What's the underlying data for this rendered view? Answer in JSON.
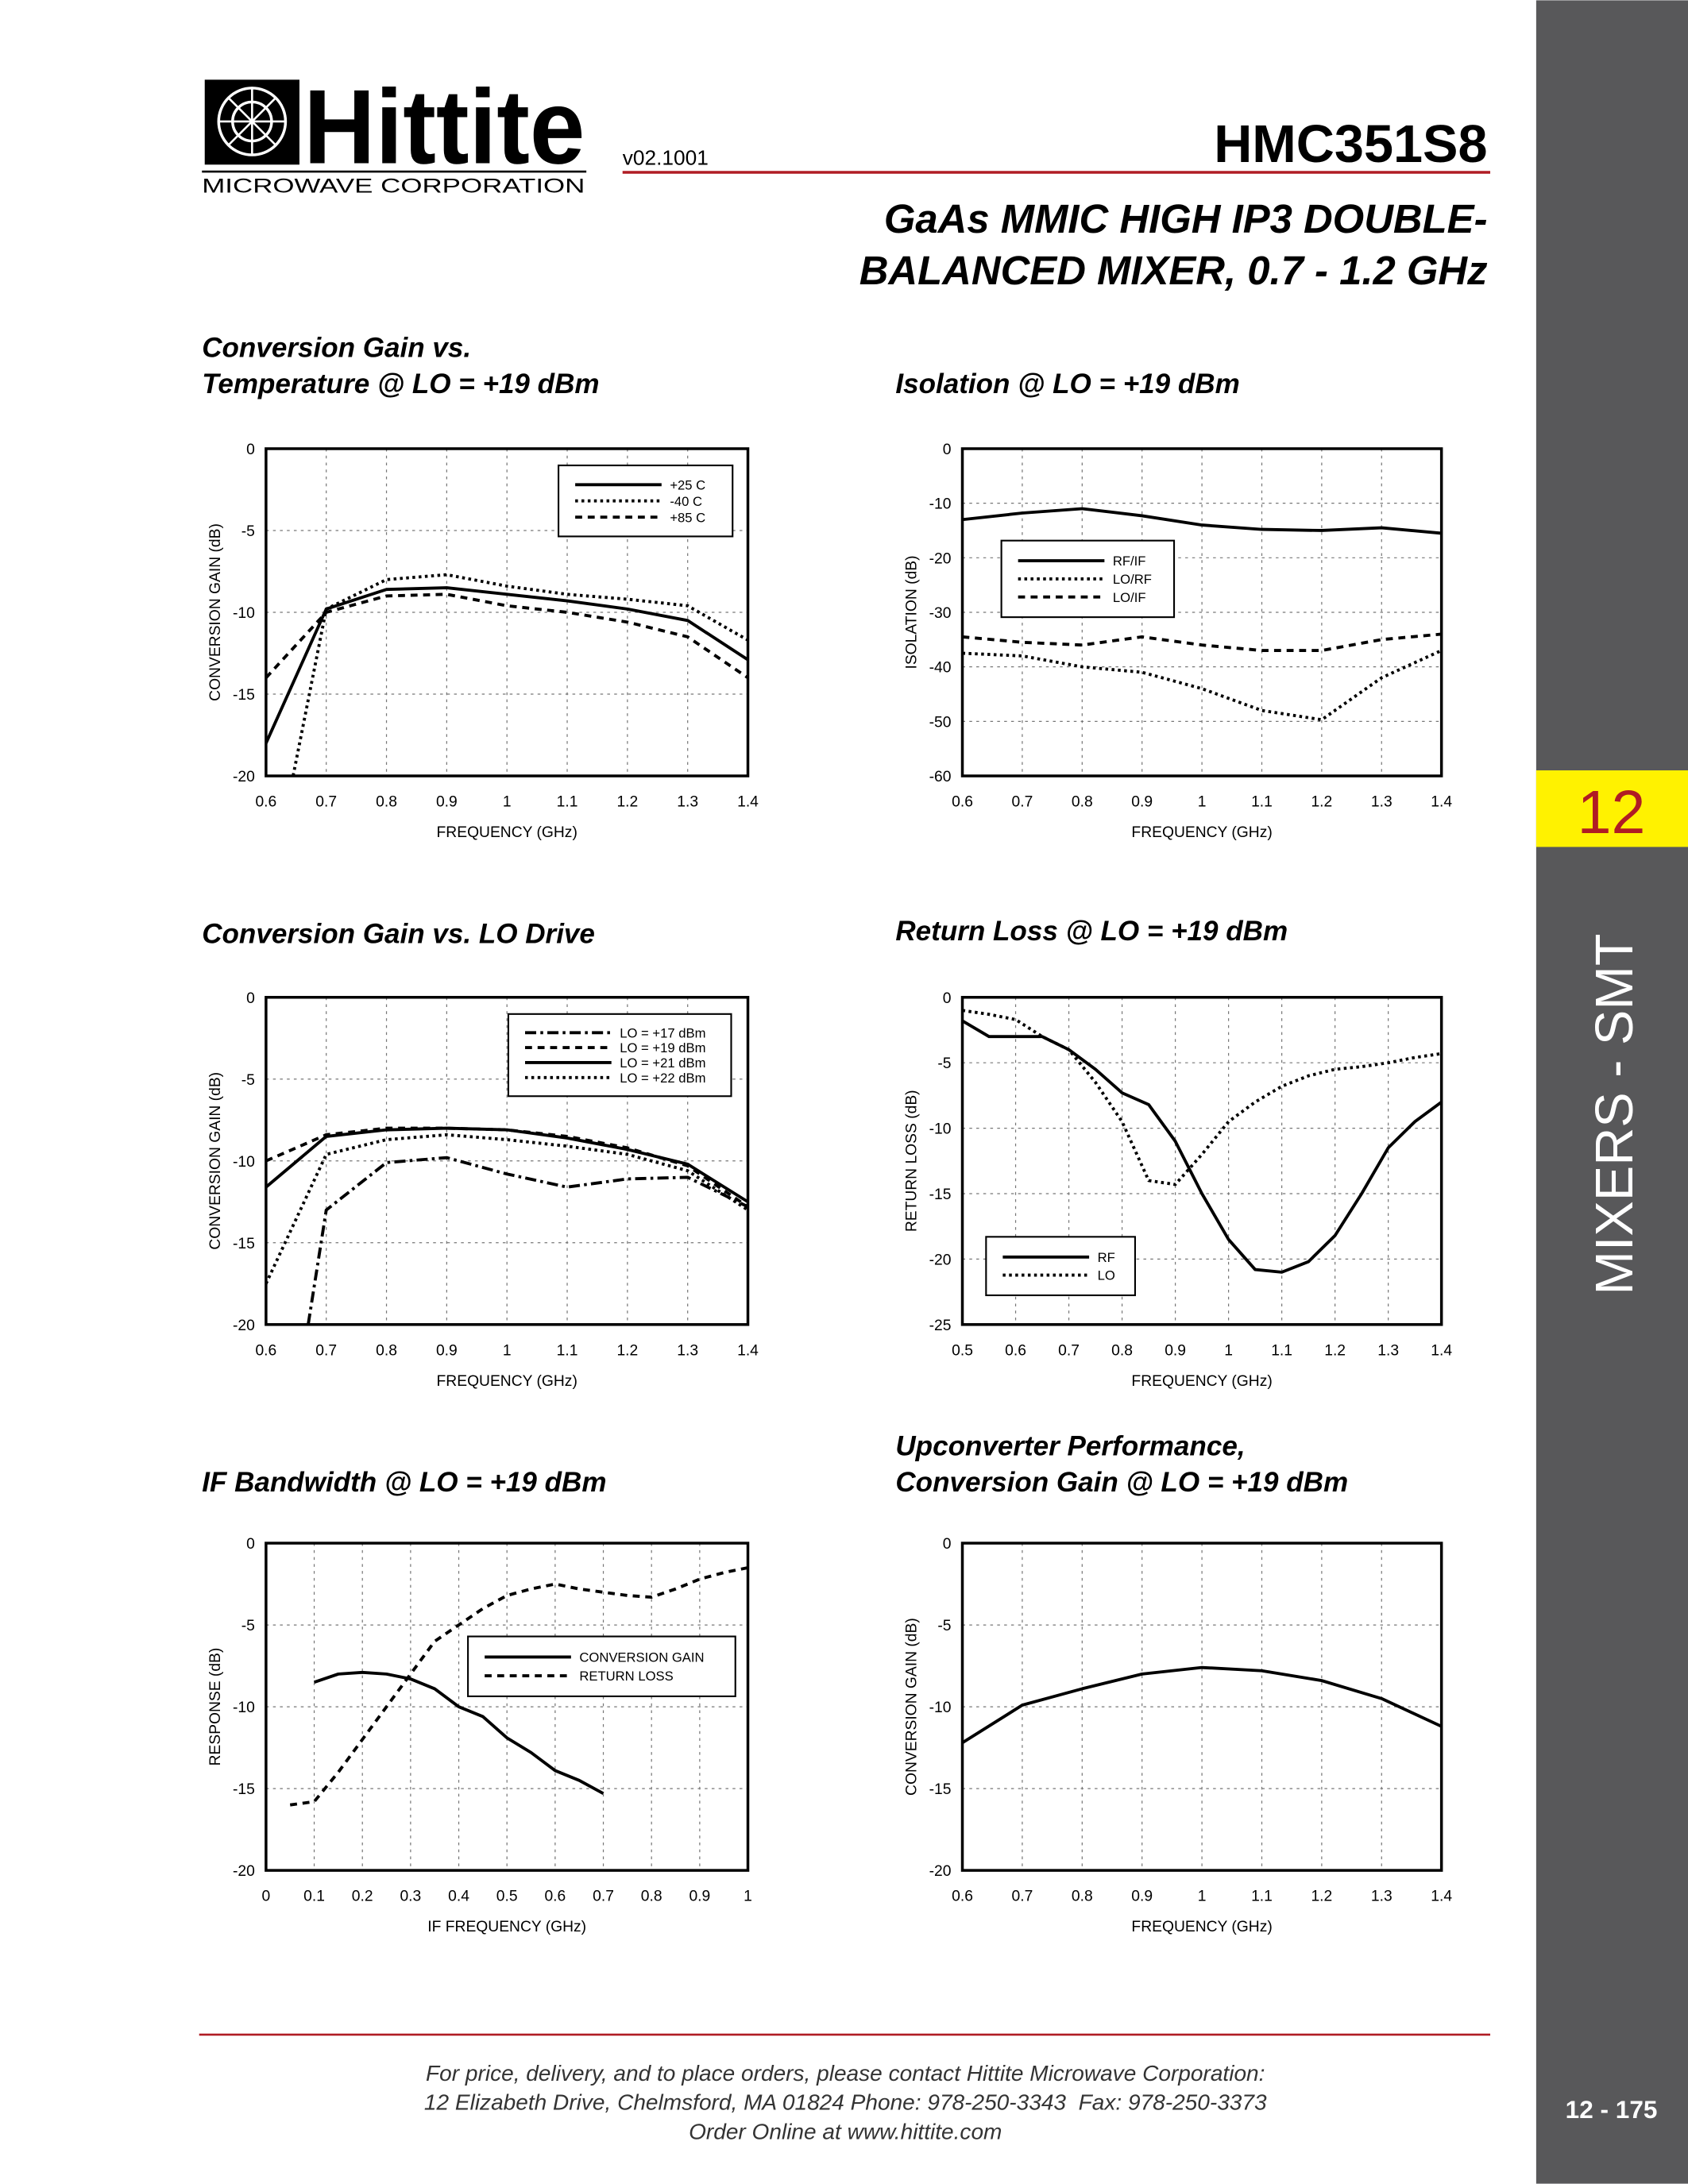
{
  "header": {
    "logo": "Hittite",
    "logo_sub": "MICROWAVE CORPORATION",
    "version": "v02.1001",
    "part": "HMC351S8",
    "title": [
      "GaAs MMIC HIGH IP3 DOUBLE-",
      "BALANCED MIXER, 0.7 - 1.2 GHz"
    ]
  },
  "sidebar": {
    "section": "12",
    "category": "MIXERS - SMT",
    "page": "12 - 175"
  },
  "footer": {
    "lines": [
      "For price, delivery, and to place orders, please contact Hittite Microwave Corporation:",
      "12 Elizabeth Drive, Chelmsford, MA 01824 Phone: 978-250-3343  Fax: 978-250-3373",
      "Order Online at www.hittite.com"
    ]
  },
  "chart_data": [
    {
      "type": "line",
      "title": [
        "Conversion Gain vs.",
        "Temperature @ LO = +19 dBm"
      ],
      "xlabel": "FREQUENCY (GHz)",
      "ylabel": "CONVERSION GAIN (dB)",
      "xlim": [
        0.6,
        1.4
      ],
      "xticks": [
        0.6,
        0.7,
        0.8,
        0.9,
        1,
        1.1,
        1.2,
        1.3,
        1.4
      ],
      "ylim": [
        -20,
        0
      ],
      "yticks": [
        0,
        -5,
        -10,
        -15,
        -20
      ],
      "grid": true,
      "legend": "upper right",
      "series": [
        {
          "name": "+25 C",
          "color": "#000000",
          "style": "solid",
          "x": [
            0.6,
            0.7,
            0.8,
            0.9,
            1,
            1.1,
            1.2,
            1.3,
            1.4
          ],
          "values": [
            -18,
            -9.8,
            -8.6,
            -8.5,
            -8.9,
            -9.3,
            -9.8,
            -10.5,
            -12.9
          ]
        },
        {
          "name": "-40 C",
          "color": "#000000",
          "style": "dotted",
          "x": [
            0.645,
            0.7,
            0.8,
            0.9,
            1,
            1.1,
            1.2,
            1.3,
            1.4
          ],
          "values": [
            -20,
            -9.8,
            -8.0,
            -7.7,
            -8.4,
            -8.9,
            -9.2,
            -9.6,
            -11.7
          ]
        },
        {
          "name": "+85 C",
          "color": "#000000",
          "style": "dashed",
          "x": [
            0.6,
            0.7,
            0.8,
            0.9,
            1,
            1.1,
            1.2,
            1.3,
            1.4
          ],
          "values": [
            -14,
            -10.0,
            -9.0,
            -8.9,
            -9.6,
            -10.0,
            -10.6,
            -11.5,
            -14.0
          ]
        }
      ]
    },
    {
      "type": "line",
      "title": [
        "Isolation @ LO = +19 dBm"
      ],
      "xlabel": "FREQUENCY (GHz)",
      "ylabel": "ISOLATION (dB)",
      "xlim": [
        0.6,
        1.4
      ],
      "xticks": [
        0.6,
        0.7,
        0.8,
        0.9,
        1,
        1.1,
        1.2,
        1.3,
        1.4
      ],
      "ylim": [
        -60,
        0
      ],
      "yticks": [
        0,
        -10,
        -20,
        -30,
        -40,
        -50,
        -60
      ],
      "grid": true,
      "legend": "center left",
      "series": [
        {
          "name": "RF/IF",
          "color": "#000000",
          "style": "solid",
          "x": [
            0.6,
            0.7,
            0.8,
            0.9,
            1,
            1.1,
            1.2,
            1.3,
            1.4
          ],
          "values": [
            -13,
            -11.8,
            -11,
            -12.3,
            -14,
            -14.8,
            -15,
            -14.5,
            -15.5
          ]
        },
        {
          "name": "LO/RF",
          "color": "#000000",
          "style": "dotted",
          "x": [
            0.6,
            0.7,
            0.8,
            0.9,
            1,
            1.1,
            1.2,
            1.3,
            1.4
          ],
          "values": [
            -37.5,
            -38,
            -40,
            -41,
            -44,
            -48,
            -49.7,
            -42,
            -37
          ]
        },
        {
          "name": "LO/IF",
          "color": "#000000",
          "style": "dashed",
          "x": [
            0.6,
            0.7,
            0.8,
            0.9,
            1,
            1.1,
            1.2,
            1.3,
            1.4
          ],
          "values": [
            -34.5,
            -35.5,
            -36,
            -34.5,
            -36,
            -37,
            -37,
            -35,
            -34
          ]
        }
      ]
    },
    {
      "type": "line",
      "title": [
        "Conversion Gain vs. LO Drive"
      ],
      "xlabel": "FREQUENCY (GHz)",
      "ylabel": "CONVERSION GAIN (dB)",
      "xlim": [
        0.6,
        1.4
      ],
      "xticks": [
        0.6,
        0.7,
        0.8,
        0.9,
        1,
        1.1,
        1.2,
        1.3,
        1.4
      ],
      "ylim": [
        -20,
        0
      ],
      "yticks": [
        0,
        -5,
        -10,
        -15,
        -20
      ],
      "grid": true,
      "legend": "upper right",
      "series": [
        {
          "name": "LO = +17 dBm",
          "color": "#000000",
          "style": "dashdot",
          "x": [
            0.67,
            0.7,
            0.8,
            0.9,
            1,
            1.1,
            1.2,
            1.3,
            1.4
          ],
          "values": [
            -20,
            -13,
            -10.1,
            -9.8,
            -10.8,
            -11.6,
            -11.1,
            -11.0,
            -12.8
          ]
        },
        {
          "name": "LO = +19 dBm",
          "color": "#000000",
          "style": "dashed",
          "x": [
            0.6,
            0.7,
            0.8,
            0.9,
            1,
            1.1,
            1.2,
            1.3,
            1.4
          ],
          "values": [
            -10.0,
            -8.4,
            -8.0,
            -8.0,
            -8.1,
            -8.5,
            -9.2,
            -10.3,
            -12.8
          ]
        },
        {
          "name": "LO = +21 dBm",
          "color": "#000000",
          "style": "solid",
          "x": [
            0.6,
            0.7,
            0.8,
            0.9,
            1,
            1.1,
            1.2,
            1.3,
            1.4
          ],
          "values": [
            -11.6,
            -8.5,
            -8.1,
            -8.0,
            -8.1,
            -8.6,
            -9.3,
            -10.2,
            -12.5
          ]
        },
        {
          "name": "LO = +22 dBm",
          "color": "#000000",
          "style": "dotted",
          "x": [
            0.6,
            0.7,
            0.8,
            0.9,
            1,
            1.1,
            1.2,
            1.3,
            1.4
          ],
          "values": [
            -17.5,
            -9.6,
            -8.7,
            -8.4,
            -8.7,
            -9.1,
            -9.6,
            -10.6,
            -13.0
          ]
        }
      ]
    },
    {
      "type": "line",
      "title": [
        "Return Loss @ LO = +19 dBm"
      ],
      "xlabel": "FREQUENCY (GHz)",
      "ylabel": "RETURN LOSS (dB)",
      "xlim": [
        0.5,
        1.4
      ],
      "xticks": [
        0.5,
        0.6,
        0.7,
        0.8,
        0.9,
        1,
        1.1,
        1.2,
        1.3,
        1.4
      ],
      "ylim": [
        -25,
        0
      ],
      "yticks": [
        0,
        -5,
        -10,
        -15,
        -20,
        -25
      ],
      "grid": true,
      "legend": "lower left",
      "series": [
        {
          "name": "RF",
          "color": "#000000",
          "style": "solid",
          "x": [
            0.5,
            0.55,
            0.6,
            0.65,
            0.7,
            0.75,
            0.8,
            0.85,
            0.9,
            0.95,
            1,
            1.05,
            1.1,
            1.15,
            1.2,
            1.25,
            1.3,
            1.35,
            1.4
          ],
          "values": [
            -1.8,
            -3.0,
            -3.0,
            -3.0,
            -4.0,
            -5.5,
            -7.3,
            -8.2,
            -11.0,
            -15.0,
            -18.5,
            -20.8,
            -21.0,
            -20.2,
            -18.2,
            -15.0,
            -11.5,
            -9.5,
            -8.0
          ]
        },
        {
          "name": "LO",
          "color": "#000000",
          "style": "dotted",
          "x": [
            0.5,
            0.55,
            0.6,
            0.65,
            0.7,
            0.75,
            0.8,
            0.85,
            0.9,
            0.95,
            1,
            1.05,
            1.1,
            1.15,
            1.2,
            1.25,
            1.3,
            1.35,
            1.4
          ],
          "values": [
            -1.0,
            -1.3,
            -1.7,
            -3.0,
            -4.0,
            -6.5,
            -9.5,
            -14.0,
            -14.3,
            -12.0,
            -9.5,
            -8.0,
            -6.8,
            -6.0,
            -5.5,
            -5.3,
            -5.0,
            -4.6,
            -4.3
          ]
        }
      ]
    },
    {
      "type": "line",
      "title": [
        "IF Bandwidth @ LO = +19 dBm"
      ],
      "xlabel": "IF FREQUENCY (GHz)",
      "ylabel": "RESPONSE (dB)",
      "xlim": [
        0,
        1
      ],
      "xticks": [
        0,
        0.1,
        0.2,
        0.3,
        0.4,
        0.5,
        0.6,
        0.7,
        0.8,
        0.9,
        1
      ],
      "ylim": [
        -20,
        0
      ],
      "yticks": [
        0,
        -5,
        -10,
        -15,
        -20
      ],
      "grid": true,
      "legend": "upper right",
      "series": [
        {
          "name": "CONVERSION GAIN",
          "color": "#000000",
          "style": "solid",
          "x": [
            0.1,
            0.15,
            0.2,
            0.25,
            0.3,
            0.35,
            0.4,
            0.45,
            0.5,
            0.55,
            0.6,
            0.65,
            0.7
          ],
          "values": [
            -8.5,
            -8.0,
            -7.9,
            -8.0,
            -8.3,
            -8.9,
            -10.0,
            -10.6,
            -11.9,
            -12.8,
            -13.9,
            -14.5,
            -15.3
          ]
        },
        {
          "name": "RETURN LOSS",
          "color": "#000000",
          "style": "dashed",
          "x": [
            0.05,
            0.1,
            0.15,
            0.2,
            0.25,
            0.3,
            0.35,
            0.4,
            0.45,
            0.5,
            0.55,
            0.6,
            0.65,
            0.7,
            0.75,
            0.8,
            0.85,
            0.9,
            0.95,
            1
          ],
          "values": [
            -16,
            -15.8,
            -14,
            -12,
            -10,
            -8,
            -6,
            -5,
            -4,
            -3.2,
            -2.8,
            -2.5,
            -2.8,
            -3.0,
            -3.2,
            -3.3,
            -2.8,
            -2.2,
            -1.8,
            -1.5
          ]
        }
      ]
    },
    {
      "type": "line",
      "title": [
        "Upconverter Performance,",
        "Conversion Gain @ LO = +19 dBm"
      ],
      "xlabel": "FREQUENCY (GHz)",
      "ylabel": "CONVERSION GAIN (dB)",
      "xlim": [
        0.6,
        1.4
      ],
      "xticks": [
        0.6,
        0.7,
        0.8,
        0.9,
        1,
        1.1,
        1.2,
        1.3,
        1.4
      ],
      "ylim": [
        -20,
        0
      ],
      "yticks": [
        0,
        -5,
        -10,
        -15,
        -20
      ],
      "grid": true,
      "series": [
        {
          "color": "#000000",
          "style": "solid",
          "x": [
            0.6,
            0.7,
            0.8,
            0.9,
            1,
            1.1,
            1.2,
            1.3,
            1.4
          ],
          "values": [
            -12.2,
            -9.9,
            -8.9,
            -8.0,
            -7.6,
            -7.8,
            -8.4,
            -9.5,
            -11.2
          ]
        }
      ]
    }
  ]
}
